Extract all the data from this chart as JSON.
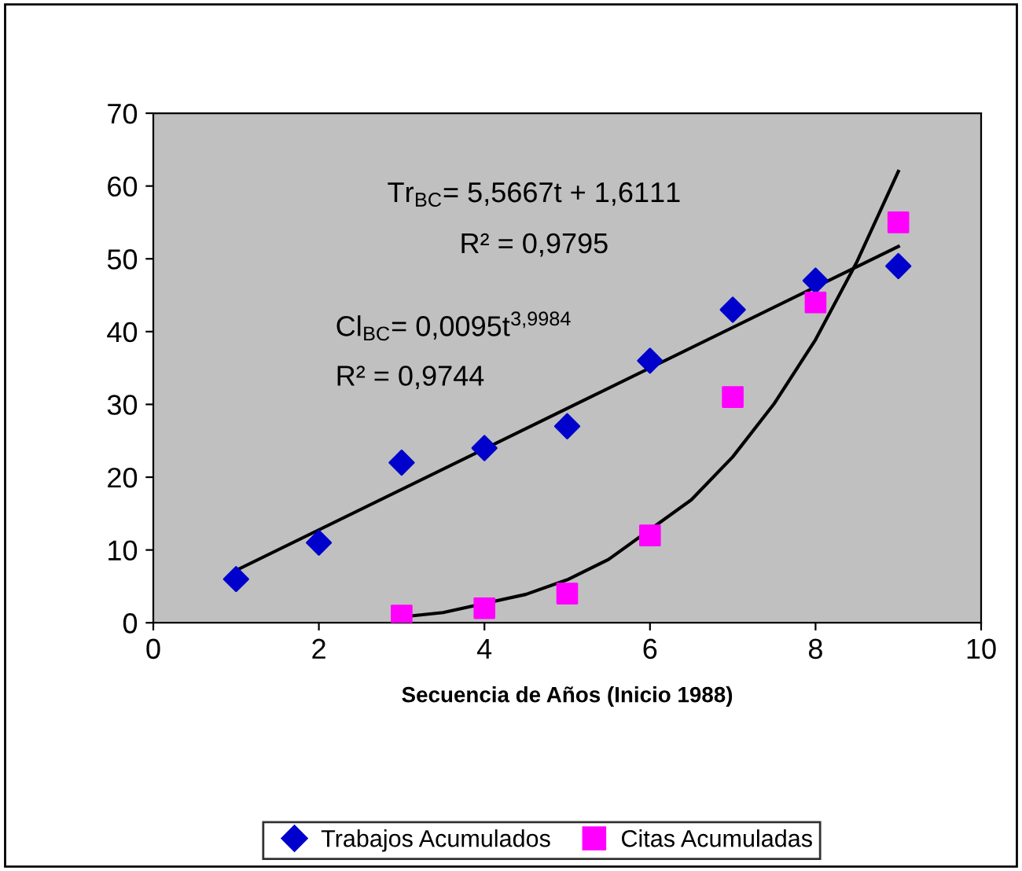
{
  "chart_data": {
    "type": "scatter",
    "xlabel": "Secuencia de Años (Inicio 1988)",
    "xlim": [
      0,
      10
    ],
    "xticks": [
      0,
      2,
      4,
      6,
      8,
      10
    ],
    "ylim": [
      0,
      70
    ],
    "yticks": [
      0,
      10,
      20,
      30,
      40,
      50,
      60,
      70
    ],
    "grid": false,
    "legend": "bottom",
    "series": [
      {
        "name": "Trabajos Acumulados",
        "marker": "diamond",
        "color": "#0000cc",
        "x": [
          1,
          2,
          3,
          4,
          5,
          6,
          7,
          8,
          9
        ],
        "values": [
          6,
          11,
          22,
          24,
          27,
          36,
          43,
          47,
          49
        ]
      },
      {
        "name": "Citas Acumuladas",
        "marker": "square",
        "color": "#ff00ff",
        "x": [
          3,
          4,
          5,
          6,
          7,
          8,
          9
        ],
        "values": [
          1,
          2,
          4,
          12,
          31,
          44,
          55
        ]
      },
      {
        "type": "line",
        "color": "#000000",
        "x": [
          1,
          9
        ],
        "values": [
          7.2,
          51.7
        ]
      },
      {
        "type": "line",
        "color": "#000000",
        "x": [
          3,
          3.5,
          4.5,
          5,
          5.5,
          6.5,
          7,
          7.5,
          8,
          8.5,
          9
        ],
        "values": [
          0.8,
          1.4,
          3.9,
          5.9,
          8.7,
          16.9,
          22.8,
          30.1,
          38.9,
          49.6,
          62
        ]
      }
    ],
    "annotations": [
      "Tr$_{BC}$= 5,5667t + 1,6111",
      "R² = 0,9795",
      "Cl$_{BC}$= 0,0095t$^{3,9984}$",
      "R² = 0,9744"
    ]
  }
}
